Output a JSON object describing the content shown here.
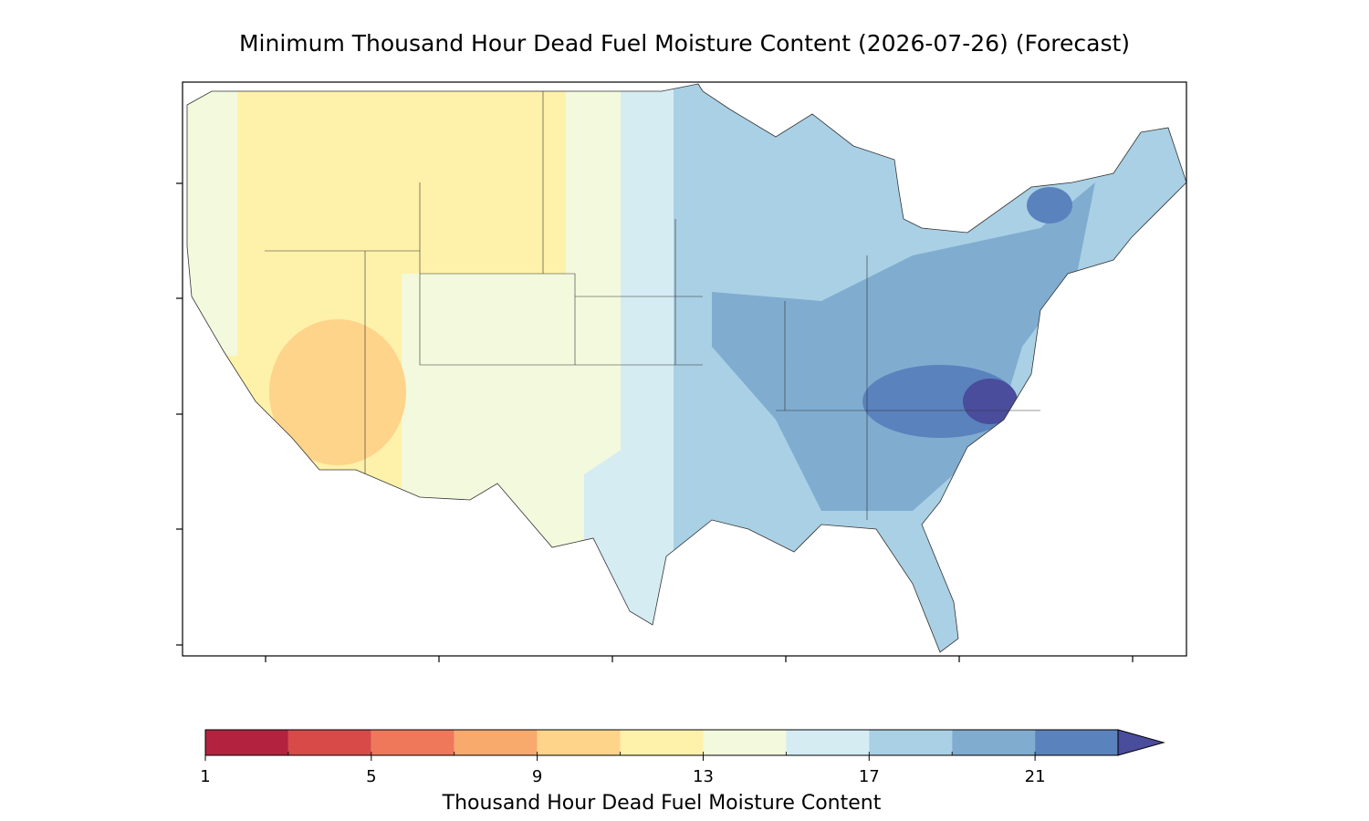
{
  "title": "Minimum Thousand Hour Dead Fuel Moisture Content (2026-07-26) (Forecast)",
  "colorbar": {
    "label": "Thousand Hour Dead Fuel Moisture Content",
    "levels": [
      1,
      3,
      5,
      7,
      9,
      11,
      13,
      15,
      17,
      19,
      21,
      23
    ],
    "colors": [
      "#b3233f",
      "#d84a48",
      "#ee7859",
      "#f8a96c",
      "#fed38a",
      "#fef1aa",
      "#f3f9dd",
      "#d5ecf3",
      "#a9d0e4",
      "#80acd0",
      "#5a82bd"
    ],
    "extend_color": "#4a4c9c",
    "ticks": [
      1,
      5,
      9,
      13,
      17,
      21
    ]
  }
}
